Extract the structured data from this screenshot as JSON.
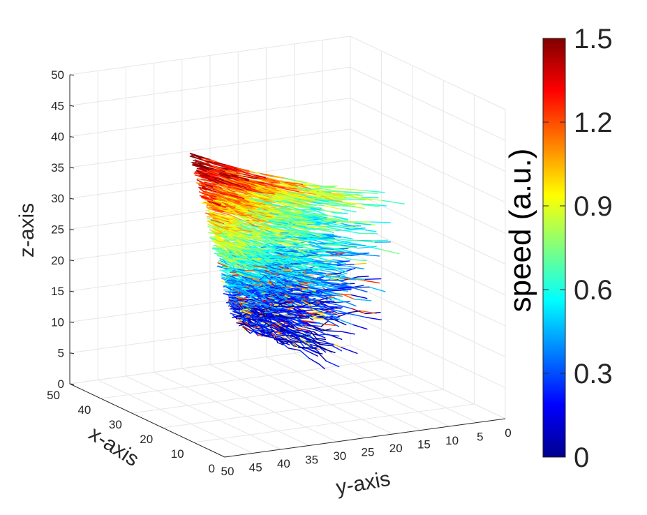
{
  "chart_data": {
    "type": "3d-streamline",
    "xlabel": "x-axis",
    "ylabel": "y-axis",
    "zlabel": "z-axis",
    "xlim": [
      0,
      50
    ],
    "ylim": [
      0,
      50
    ],
    "zlim": [
      0,
      50
    ],
    "xticks": [
      0,
      10,
      20,
      30,
      40,
      50
    ],
    "yticks": [
      0,
      5,
      10,
      15,
      20,
      25,
      30,
      35,
      40,
      45,
      50
    ],
    "zticks": [
      0,
      5,
      10,
      15,
      20,
      25,
      30,
      35,
      40,
      45,
      50
    ],
    "grid": true,
    "colormap": "jet",
    "colorbar": {
      "label": "speed (a.u.)",
      "range": [
        0,
        1.5
      ],
      "ticks": [
        "0",
        "0.3",
        "0.6",
        "0.9",
        "1.2",
        "1.5"
      ],
      "position": "right"
    },
    "colors": {
      "high_speed": "#8b0000",
      "low_speed": "#00008f",
      "grid": "#e6e6e6",
      "axis": "#262626"
    }
  }
}
